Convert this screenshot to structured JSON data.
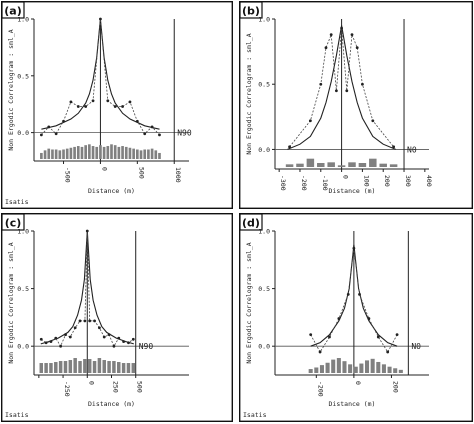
{
  "chart_data": [
    {
      "type": "line",
      "panel_label": "(a)",
      "ylabel": "Non Ergodic Correlogram : sml_A",
      "xlabel": "Distance (m)",
      "footer": "Isatis",
      "direction_label": "N90",
      "xlim": [
        -900,
        1200
      ],
      "ylim": [
        -0.25,
        1.0
      ],
      "x_ticks": [
        -500,
        0,
        500,
        1000
      ],
      "x_tick_labels": [
        "-500",
        "0",
        "500",
        "1000"
      ],
      "y_ticks": [
        0.0,
        0.5,
        1.0
      ],
      "y_tick_labels": [
        "0.0",
        "0.5",
        "1.0"
      ],
      "boundary_x": 1000,
      "series": [
        {
          "kind": "experimental",
          "x": [
            -800,
            -700,
            -600,
            -500,
            -400,
            -300,
            -200,
            -100,
            0,
            100,
            200,
            300,
            400,
            500,
            600,
            700,
            800
          ],
          "y": [
            -0.02,
            0.05,
            -0.01,
            0.1,
            0.27,
            0.23,
            0.23,
            0.28,
            1.0,
            0.28,
            0.23,
            0.23,
            0.27,
            0.1,
            -0.01,
            0.05,
            -0.02
          ]
        },
        {
          "kind": "model",
          "x": [
            -800,
            -600,
            -400,
            -300,
            -200,
            -150,
            -100,
            -50,
            0,
            50,
            100,
            150,
            200,
            300,
            400,
            600,
            800
          ],
          "y": [
            0.03,
            0.06,
            0.12,
            0.17,
            0.26,
            0.34,
            0.46,
            0.66,
            1.0,
            0.66,
            0.46,
            0.34,
            0.26,
            0.17,
            0.12,
            0.06,
            0.03
          ]
        },
        {
          "kind": "pairs",
          "x": [
            -800,
            -750,
            -700,
            -650,
            -600,
            -550,
            -500,
            -450,
            -400,
            -350,
            -300,
            -250,
            -200,
            -150,
            -100,
            -50,
            0,
            50,
            100,
            150,
            200,
            250,
            300,
            350,
            400,
            450,
            500,
            550,
            600,
            650,
            700,
            750,
            800
          ],
          "y": [
            0.35,
            0.5,
            0.6,
            0.55,
            0.55,
            0.5,
            0.55,
            0.6,
            0.65,
            0.7,
            0.75,
            0.7,
            0.8,
            0.85,
            0.75,
            0.7,
            0.8,
            0.7,
            0.75,
            0.85,
            0.8,
            0.7,
            0.75,
            0.7,
            0.65,
            0.6,
            0.55,
            0.5,
            0.55,
            0.55,
            0.6,
            0.5,
            0.35
          ]
        }
      ]
    },
    {
      "type": "line",
      "panel_label": "(b)",
      "ylabel": "Non Ergodic Correlogram : sml_A",
      "xlabel": "Distance (m)",
      "footer": "",
      "direction_label": "N0",
      "xlim": [
        -320,
        420
      ],
      "ylim": [
        -0.15,
        1.0
      ],
      "x_ticks": [
        -300,
        -200,
        -100,
        0,
        100,
        200,
        300,
        400
      ],
      "x_tick_labels": [
        "-300",
        "-200",
        "-100",
        "0",
        "100",
        "200",
        "300",
        "400"
      ],
      "y_ticks": [
        0.0,
        0.5,
        1.0
      ],
      "y_tick_labels": [
        "0.0",
        "0.5",
        "1.0"
      ],
      "boundary_x": 300,
      "series": [
        {
          "kind": "experimental",
          "x": [
            -250,
            -150,
            -100,
            -75,
            -50,
            -25,
            0,
            25,
            50,
            75,
            100,
            150,
            250
          ],
          "y": [
            0.02,
            0.22,
            0.5,
            0.78,
            0.88,
            0.45,
            0.93,
            0.45,
            0.88,
            0.78,
            0.5,
            0.22,
            0.02
          ]
        },
        {
          "kind": "model",
          "x": [
            -260,
            -200,
            -150,
            -100,
            -75,
            -50,
            -25,
            0,
            25,
            50,
            75,
            100,
            150,
            200,
            260
          ],
          "y": [
            0.0,
            0.04,
            0.1,
            0.24,
            0.36,
            0.52,
            0.72,
            0.95,
            0.72,
            0.52,
            0.36,
            0.24,
            0.1,
            0.04,
            0.0
          ]
        },
        {
          "kind": "pairs",
          "x": [
            -250,
            -200,
            -150,
            -100,
            -50,
            0,
            50,
            100,
            150,
            200,
            250
          ],
          "y": [
            0.4,
            0.5,
            1.25,
            0.6,
            0.7,
            0.25,
            0.7,
            0.6,
            1.25,
            0.5,
            0.4
          ]
        }
      ]
    },
    {
      "type": "line",
      "panel_label": "(c)",
      "ylabel": "Non Ergodic Correlogram : sml_A",
      "xlabel": "Distance (m)",
      "footer": "Isatis",
      "direction_label": "N90",
      "xlim": [
        -550,
        1050
      ],
      "ylim": [
        -0.25,
        1.0
      ],
      "x_ticks": [
        -500,
        -250,
        0,
        250,
        500
      ],
      "x_tick_labels": [
        "",
        "-250",
        "0",
        "250",
        "500"
      ],
      "y_ticks": [
        0.0,
        0.5,
        1.0
      ],
      "y_tick_labels": [
        "0.0",
        "0.5",
        "1.0"
      ],
      "boundary_x": 500,
      "series": [
        {
          "kind": "experimental",
          "x": [
            -475,
            -425,
            -375,
            -325,
            -275,
            -225,
            -175,
            -125,
            -75,
            -25,
            0,
            25,
            75,
            125,
            175,
            225,
            275,
            325,
            375,
            425,
            475
          ],
          "y": [
            0.06,
            0.03,
            0.04,
            0.07,
            0.0,
            0.1,
            0.08,
            0.16,
            0.22,
            0.22,
            1.0,
            0.22,
            0.22,
            0.16,
            0.08,
            0.1,
            0.0,
            0.07,
            0.04,
            0.03,
            0.06
          ]
        },
        {
          "kind": "model",
          "x": [
            -480,
            -400,
            -300,
            -200,
            -150,
            -100,
            -60,
            -30,
            0,
            30,
            60,
            100,
            150,
            200,
            300,
            400,
            480
          ],
          "y": [
            0.02,
            0.04,
            0.07,
            0.12,
            0.17,
            0.27,
            0.4,
            0.58,
            1.0,
            0.58,
            0.4,
            0.27,
            0.17,
            0.12,
            0.07,
            0.04,
            0.02
          ]
        },
        {
          "kind": "pairs",
          "x": [
            -475,
            -425,
            -375,
            -325,
            -275,
            -225,
            -175,
            -125,
            -75,
            -25,
            25,
            75,
            125,
            175,
            225,
            275,
            325,
            375,
            425,
            475
          ],
          "y": [
            0.5,
            0.5,
            0.5,
            0.55,
            0.6,
            0.6,
            0.65,
            0.75,
            0.6,
            0.7,
            0.7,
            0.6,
            0.75,
            0.65,
            0.6,
            0.6,
            0.55,
            0.5,
            0.5,
            0.5
          ]
        }
      ]
    },
    {
      "type": "line",
      "panel_label": "(d)",
      "ylabel": "Non Ergodic Correlogram : sml_A",
      "xlabel": "Distance (m)",
      "footer": "Isatis",
      "direction_label": "N0",
      "xlim": [
        -420,
        400
      ],
      "ylim": [
        -0.25,
        1.0
      ],
      "x_ticks": [
        -200,
        0,
        200
      ],
      "x_tick_labels": [
        "-200",
        "0",
        "200"
      ],
      "y_ticks": [
        0.0,
        0.5,
        1.0
      ],
      "y_tick_labels": [
        "0.0",
        "0.5",
        "1.0"
      ],
      "boundary_x": 290,
      "series": [
        {
          "kind": "experimental",
          "x": [
            -230,
            -180,
            -130,
            -80,
            -30,
            0,
            30,
            80,
            130,
            180,
            230
          ],
          "y": [
            0.1,
            -0.05,
            0.08,
            0.24,
            0.45,
            0.85,
            0.45,
            0.24,
            0.08,
            -0.05,
            0.1
          ]
        },
        {
          "kind": "model",
          "x": [
            -230,
            -180,
            -130,
            -80,
            -50,
            -25,
            0,
            25,
            50,
            80,
            130,
            180,
            230
          ],
          "y": [
            0.0,
            0.03,
            0.1,
            0.22,
            0.33,
            0.5,
            0.88,
            0.5,
            0.33,
            0.22,
            0.1,
            0.03,
            0.0
          ]
        },
        {
          "kind": "pairs",
          "x": [
            -230,
            -200,
            -170,
            -140,
            -110,
            -80,
            -50,
            -20,
            10,
            40,
            70,
            100,
            130,
            160,
            190,
            220,
            250
          ],
          "y": [
            0.25,
            0.35,
            0.5,
            0.65,
            0.85,
            0.95,
            0.75,
            0.55,
            0.4,
            0.6,
            0.8,
            0.9,
            0.7,
            0.55,
            0.4,
            0.3,
            0.2
          ]
        }
      ]
    }
  ]
}
